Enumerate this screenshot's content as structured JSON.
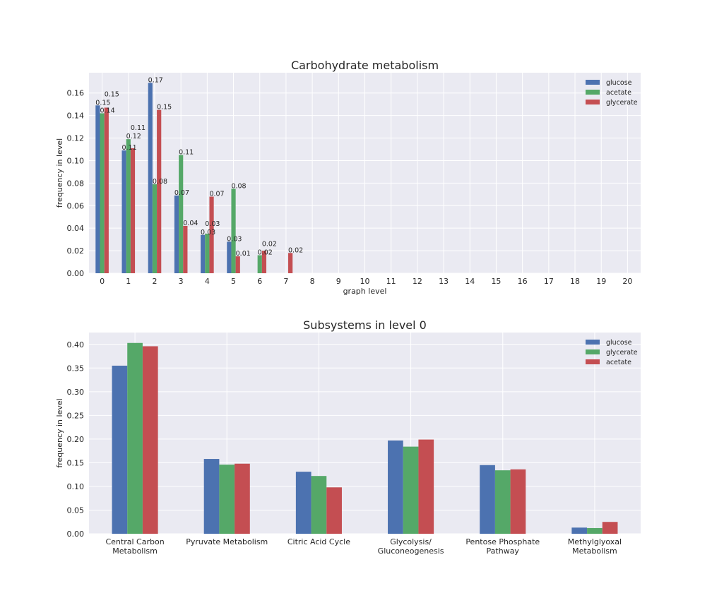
{
  "colors": {
    "glucose": "#4C72B0",
    "acetate": "#55A868",
    "glycerate": "#C44E52",
    "background": "#EAEAF2",
    "grid": "#FFFFFF"
  },
  "chart_data": [
    {
      "type": "bar",
      "title": "Carbohydrate metabolism",
      "xlabel": "graph level",
      "ylabel": "frequency in level",
      "categories": [
        "0",
        "1",
        "2",
        "3",
        "4",
        "5",
        "6",
        "7",
        "8",
        "9",
        "10",
        "11",
        "12",
        "13",
        "14",
        "15",
        "16",
        "17",
        "18",
        "19",
        "20"
      ],
      "xlim": [
        -0.5,
        20.5
      ],
      "ylim": [
        0,
        0.178
      ],
      "yticks": [
        "0.00",
        "0.02",
        "0.04",
        "0.06",
        "0.08",
        "0.10",
        "0.12",
        "0.14",
        "0.16"
      ],
      "grid": true,
      "legend_position": "top-right",
      "series": [
        {
          "name": "glucose",
          "color_key": "glucose",
          "values": [
            0.149,
            0.109,
            0.169,
            0.069,
            0.034,
            0.028,
            0,
            0,
            0,
            0,
            0,
            0,
            0,
            0,
            0,
            0,
            0,
            0,
            0,
            0,
            0
          ],
          "labels": [
            "0.15",
            "0.11",
            "0.17",
            "0.07",
            "0.03",
            "0.03"
          ]
        },
        {
          "name": "acetate",
          "color_key": "acetate",
          "values": [
            0.142,
            0.119,
            0.079,
            0.105,
            0.035,
            0.075,
            0.016,
            0,
            0,
            0,
            0,
            0,
            0,
            0,
            0,
            0,
            0,
            0,
            0,
            0,
            0
          ],
          "labels": [
            "0.14",
            "0.12",
            "0.08",
            "0.11",
            "0.03",
            "0.08",
            "0.02"
          ]
        },
        {
          "name": "glycerate",
          "color_key": "glycerate",
          "values": [
            0.147,
            0.111,
            0.145,
            0.042,
            0.068,
            0.015,
            0.02,
            0.018,
            0,
            0,
            0,
            0,
            0,
            0,
            0,
            0,
            0,
            0,
            0,
            0,
            0
          ],
          "labels": [
            "0.15",
            "0.11",
            "0.15",
            "0.04",
            "0.07",
            "0.01",
            "0.02",
            "0.02"
          ]
        }
      ]
    },
    {
      "type": "bar",
      "title": "Subsystems in level 0",
      "xlabel": "",
      "ylabel": "frequency in level",
      "categories": [
        "Central Carbon Metabolism",
        "Pyruvate Metabolism",
        "Citric Acid Cycle",
        "Glycolysis/Gluconeogenesis",
        "Pentose Phosphate Pathway",
        "Methylglyoxal Metabolism"
      ],
      "xlim": [
        -0.5,
        5.5
      ],
      "ylim": [
        0,
        0.425
      ],
      "yticks": [
        "0.00",
        "0.05",
        "0.10",
        "0.15",
        "0.20",
        "0.25",
        "0.30",
        "0.35",
        "0.40"
      ],
      "grid": true,
      "legend_position": "top-right",
      "series": [
        {
          "name": "glucose",
          "color_key": "glucose",
          "values": [
            0.355,
            0.158,
            0.131,
            0.197,
            0.145,
            0.013
          ]
        },
        {
          "name": "glycerate",
          "color_key": "acetate",
          "values": [
            0.403,
            0.146,
            0.122,
            0.184,
            0.134,
            0.012
          ]
        },
        {
          "name": "acetate",
          "color_key": "glycerate",
          "values": [
            0.396,
            0.148,
            0.098,
            0.199,
            0.136,
            0.025
          ]
        }
      ]
    }
  ]
}
